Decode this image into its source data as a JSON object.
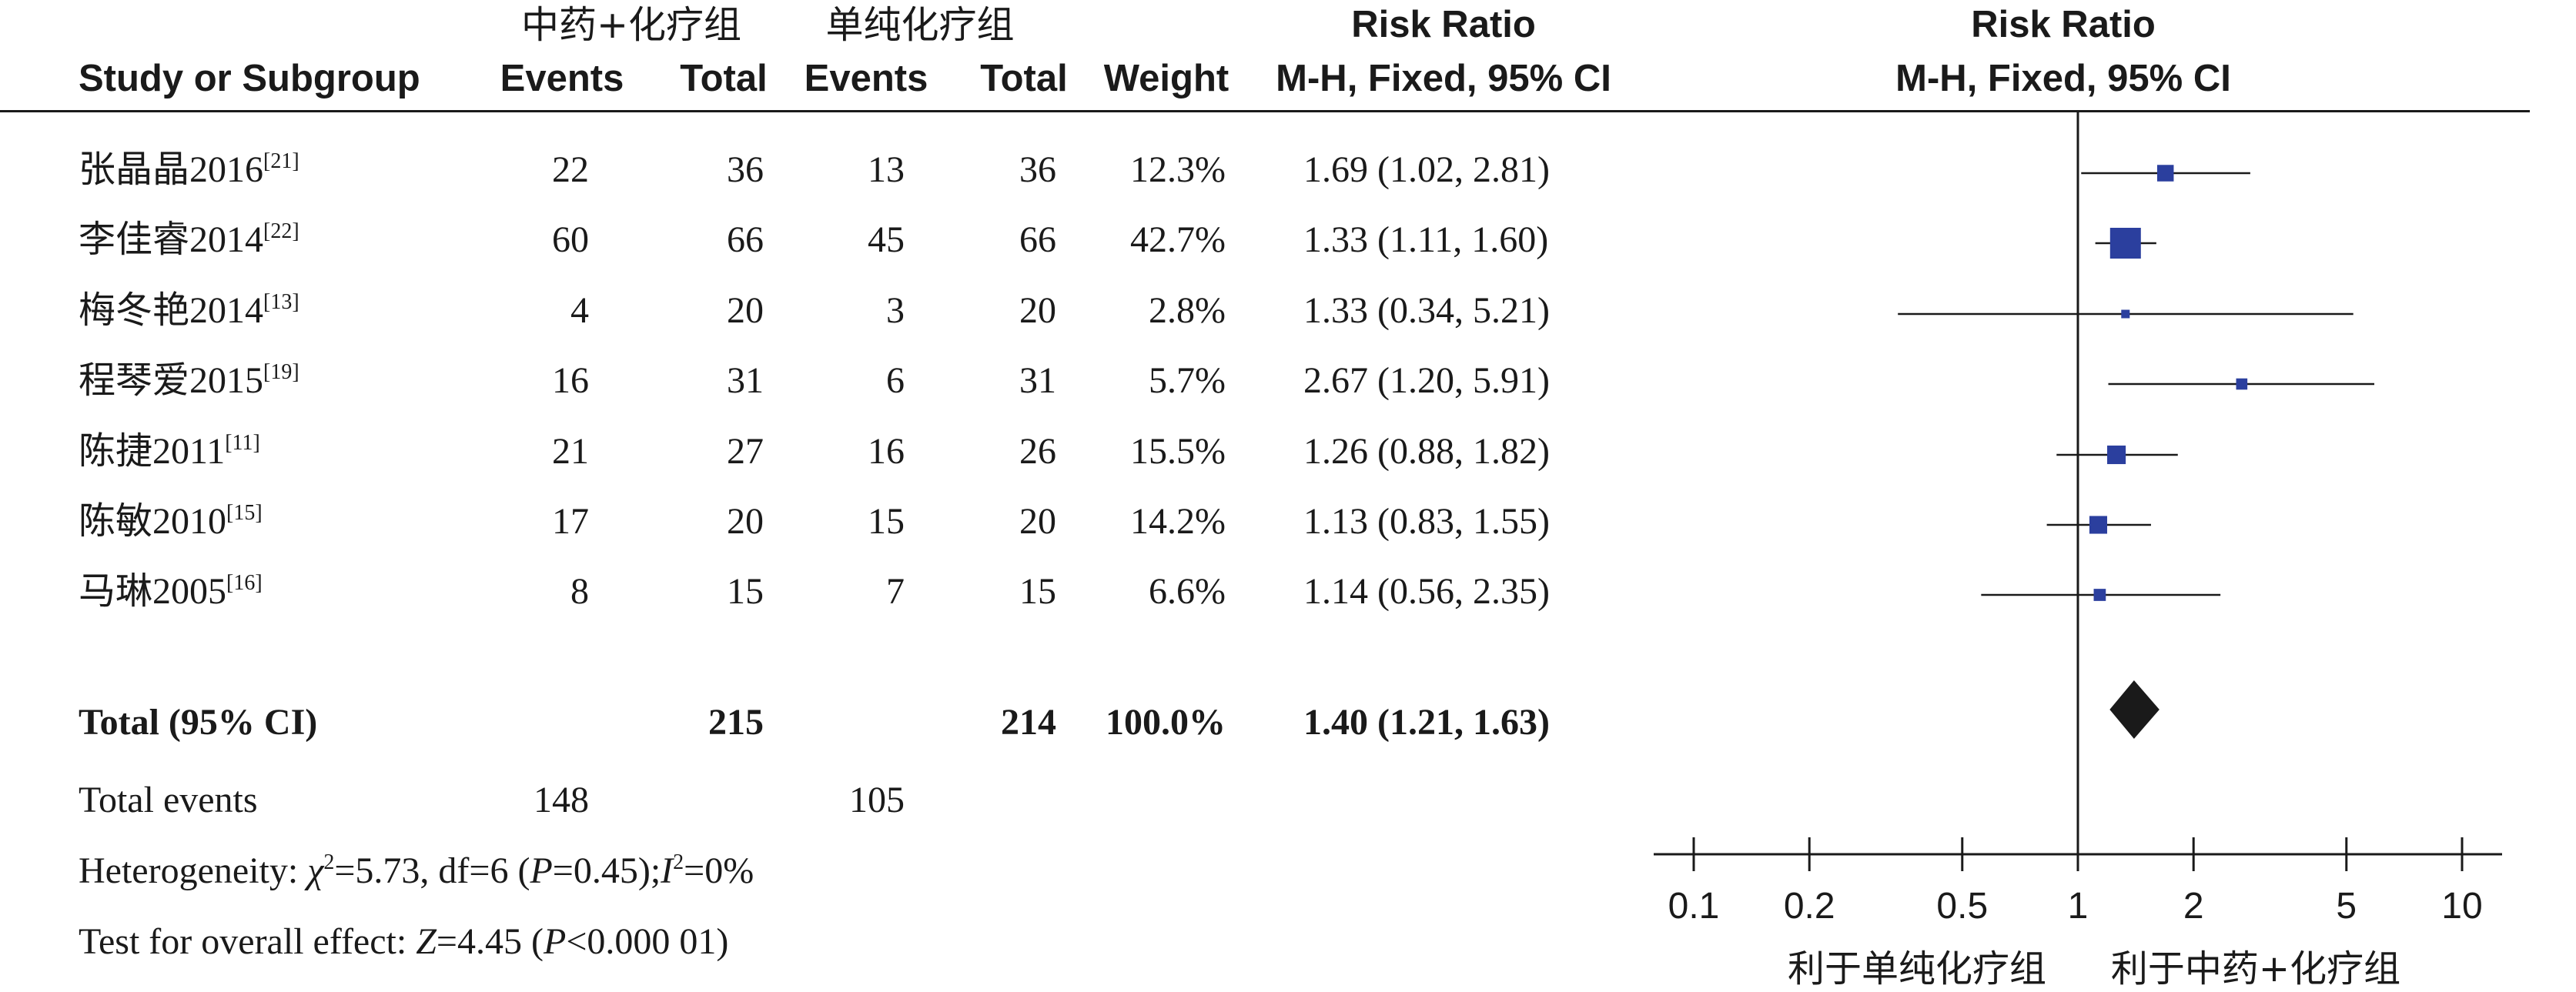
{
  "header": {
    "group_treat": "中药+化疗组",
    "group_ctrl": "单纯化疗组",
    "study_col": "Study or Subgroup",
    "events": "Events",
    "total": "Total",
    "weight": "Weight",
    "rr_title": "Risk Ratio",
    "rr_method": "M-H, Fixed, 95% CI",
    "plot_title": "Risk Ratio",
    "plot_method": "M-H, Fixed, 95% CI"
  },
  "studies": [
    {
      "name": "张晶晶2016",
      "ref": "[21]",
      "e1": "22",
      "n1": "36",
      "e2": "13",
      "n2": "36",
      "weight": "12.3%",
      "ci_text": "1.69 (1.02, 2.81)"
    },
    {
      "name": "李佳睿2014",
      "ref": "[22]",
      "e1": "60",
      "n1": "66",
      "e2": "45",
      "n2": "66",
      "weight": "42.7%",
      "ci_text": "1.33 (1.11, 1.60)"
    },
    {
      "name": "梅冬艳2014",
      "ref": "[13]",
      "e1": "4",
      "n1": "20",
      "e2": "3",
      "n2": "20",
      "weight": "2.8%",
      "ci_text": "1.33 (0.34, 5.21)"
    },
    {
      "name": "程琴爱2015",
      "ref": "[19]",
      "e1": "16",
      "n1": "31",
      "e2": "6",
      "n2": "31",
      "weight": "5.7%",
      "ci_text": "2.67 (1.20, 5.91)"
    },
    {
      "name": "陈捷2011",
      "ref": "[11]",
      "e1": "21",
      "n1": "27",
      "e2": "16",
      "n2": "26",
      "weight": "15.5%",
      "ci_text": "1.26 (0.88, 1.82)"
    },
    {
      "name": "陈敏2010",
      "ref": "[15]",
      "e1": "17",
      "n1": "20",
      "e2": "15",
      "n2": "20",
      "weight": "14.2%",
      "ci_text": "1.13 (0.83, 1.55)"
    },
    {
      "name": "马琳2005",
      "ref": "[16]",
      "e1": "8",
      "n1": "15",
      "e2": "7",
      "n2": "15",
      "weight": "6.6%",
      "ci_text": "1.14 (0.56, 2.35)"
    }
  ],
  "total": {
    "label": "Total (95% CI)",
    "n1": "215",
    "n2": "214",
    "weight": "100.0%",
    "ci_text": "1.40 (1.21, 1.63)"
  },
  "total_events": {
    "label": "Total events",
    "e1": "148",
    "e2": "105"
  },
  "heterogeneity": {
    "label": "Heterogeneity: ",
    "chi_sym": "χ",
    "chi_sup": "2",
    "chi_val": "=5.73, df=6 (",
    "p_sym": "P",
    "p_val": "=0.45);",
    "i_sym": "I",
    "i_sup": "2",
    "i_val": "=0%"
  },
  "overall": {
    "label": "Test for overall effect: ",
    "z_sym": "Z",
    "z_val": "=4.45 (",
    "p_sym": "P",
    "p_val": "<0.000 01)"
  },
  "axis": {
    "favors_left": "利于单纯化疗组",
    "favors_right": "利于中药+化疗组"
  },
  "colors": {
    "marker": "#2b3f9e",
    "diamond": "#1a1a1a",
    "line": "#1a1a1a"
  },
  "chart_data": {
    "type": "forest",
    "scale": "log",
    "xlim": [
      0.1,
      10
    ],
    "null_value": 1,
    "ticks": [
      0.1,
      0.2,
      0.5,
      1,
      2,
      5,
      10
    ],
    "tick_labels": [
      "0.1",
      "0.2",
      "0.5",
      "1",
      "2",
      "5",
      "10"
    ],
    "points": [
      {
        "study": "张晶晶2016",
        "rr": 1.69,
        "lo": 1.02,
        "hi": 2.81,
        "weight": 12.3
      },
      {
        "study": "李佳睿2014",
        "rr": 1.33,
        "lo": 1.11,
        "hi": 1.6,
        "weight": 42.7
      },
      {
        "study": "梅冬艳2014",
        "rr": 1.33,
        "lo": 0.34,
        "hi": 5.21,
        "weight": 2.8
      },
      {
        "study": "程琴爱2015",
        "rr": 2.67,
        "lo": 1.2,
        "hi": 5.91,
        "weight": 5.7
      },
      {
        "study": "陈捷2011",
        "rr": 1.26,
        "lo": 0.88,
        "hi": 1.82,
        "weight": 15.5
      },
      {
        "study": "陈敏2010",
        "rr": 1.13,
        "lo": 0.83,
        "hi": 1.55,
        "weight": 14.2
      },
      {
        "study": "马琳2005",
        "rr": 1.14,
        "lo": 0.56,
        "hi": 2.35,
        "weight": 6.6
      }
    ],
    "pooled": {
      "rr": 1.4,
      "lo": 1.21,
      "hi": 1.63
    }
  }
}
